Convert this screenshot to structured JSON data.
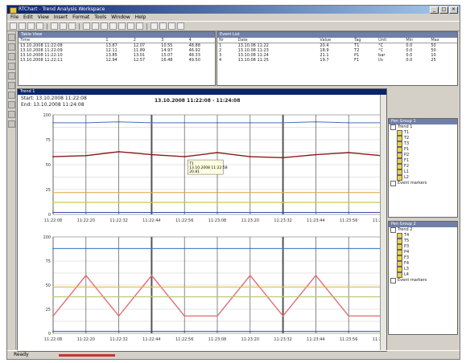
{
  "window": {
    "title": "RTChart - Trend Analysis Workspace"
  },
  "titlebar": {
    "min": "_",
    "max": "□",
    "close": "×"
  },
  "menu": [
    "File",
    "Edit",
    "View",
    "Insert",
    "Format",
    "Tools",
    "Window",
    "Help"
  ],
  "left_table": {
    "title": "Table View",
    "columns": [
      "Time",
      "1",
      "2",
      "3",
      "4"
    ],
    "rows": [
      [
        "13.10.2008 11:22:08",
        "13.87",
        "12.07",
        "10.55",
        "48.88"
      ],
      [
        "13.10.2008 11:22:09",
        "12.11",
        "11.89",
        "14.97",
        "46.92"
      ],
      [
        "13.10.2008 11:22:10",
        "13.85",
        "13.01",
        "15.07",
        "48.33"
      ],
      [
        "13.10.2008 11:22:11",
        "12.94",
        "12.57",
        "16.48",
        "49.50"
      ]
    ]
  },
  "right_table": {
    "title": "Event List",
    "columns": [
      "Nr",
      "Date",
      "Value",
      "Tag",
      "Unit",
      "Min",
      "Max"
    ],
    "rows": [
      [
        "1",
        "13.10.08 11:22",
        "20.4",
        "T1",
        "°C",
        "0.0",
        "50"
      ],
      [
        "2",
        "13.10.08 11:23",
        "18.9",
        "T2",
        "°C",
        "0.0",
        "50"
      ],
      [
        "3",
        "13.10.08 11:24",
        "21.1",
        "P1",
        "bar",
        "0.0",
        "10"
      ],
      [
        "4",
        "13.10.08 11:25",
        "19.7",
        "F1",
        "l/s",
        "0.0",
        "25"
      ]
    ]
  },
  "chart_window": {
    "title": "Trend 1",
    "info_line1": "Start: 13.10.2008 11:22:08",
    "info_line2": "End: 13.10.2008 11:24:08",
    "heading": "13.10.2008 11:22:08 - 11:24:08",
    "tooltip_lines": [
      "T1",
      "13.10.2008 11:22:58",
      "20.81"
    ]
  },
  "chart_data": [
    {
      "type": "line",
      "title": "",
      "x_ticks": [
        "11:22:08",
        "11:22:20",
        "11:22:32",
        "11:22:44",
        "11:22:56",
        "11:23:08",
        "11:23:20",
        "11:23:32",
        "11:23:44",
        "11:23:56",
        "11:24:08"
      ],
      "x": [
        0,
        10,
        20,
        30,
        40,
        50,
        60,
        70,
        80,
        90,
        100
      ],
      "ylim": [
        0,
        100
      ],
      "series": [
        {
          "color": "#4a6fb5",
          "values": [
            92,
            92,
            93,
            92,
            92,
            92,
            92,
            92,
            93,
            92,
            92
          ]
        },
        {
          "color": "#8b1a1a",
          "values": [
            58,
            59,
            63,
            60,
            58,
            62,
            58,
            57,
            60,
            62,
            59
          ]
        },
        {
          "color": "#e0a23a",
          "values": [
            22,
            22,
            22,
            22,
            22,
            22,
            22,
            22,
            22,
            22,
            22
          ]
        },
        {
          "color": "#c8c83a",
          "values": [
            12,
            12,
            12,
            12,
            12,
            12,
            12,
            12,
            12,
            12,
            12
          ]
        },
        {
          "color": "#3a4aa8",
          "values": [
            2,
            2,
            2,
            2,
            2,
            2,
            2,
            2,
            2,
            2,
            2
          ]
        }
      ]
    },
    {
      "type": "line",
      "title": "",
      "x_ticks": [
        "11:22:08",
        "11:22:20",
        "11:22:32",
        "11:22:44",
        "11:22:56",
        "11:23:08",
        "11:23:20",
        "11:23:32",
        "11:23:44",
        "11:23:56",
        "11:24:08"
      ],
      "x": [
        0,
        10,
        20,
        30,
        40,
        50,
        60,
        70,
        80,
        90,
        100
      ],
      "ylim": [
        0,
        100
      ],
      "series": [
        {
          "color": "#3a7bc8",
          "values": [
            88,
            88,
            88,
            88,
            88,
            88,
            88,
            88,
            88,
            88,
            88
          ]
        },
        {
          "color": "#e07070",
          "values": [
            18,
            60,
            18,
            60,
            18,
            18,
            60,
            18,
            60,
            18,
            18
          ]
        },
        {
          "color": "#e0b040",
          "values": [
            48,
            48,
            48,
            48,
            48,
            48,
            48,
            48,
            48,
            48,
            48
          ]
        },
        {
          "color": "#b8c870",
          "values": [
            38,
            38,
            38,
            38,
            38,
            38,
            38,
            38,
            38,
            38,
            38
          ]
        },
        {
          "color": "#3a4aa8",
          "values": [
            2,
            2,
            2,
            2,
            2,
            2,
            2,
            2,
            2,
            2,
            2
          ]
        }
      ]
    }
  ],
  "tree1": {
    "title": "Pen Group 1",
    "items": [
      {
        "label": "Trend 1",
        "color": "#ffffff"
      },
      {
        "label": "T1",
        "color": "#e8d24a"
      },
      {
        "label": "T2",
        "color": "#e8d24a"
      },
      {
        "label": "T3",
        "color": "#e8d24a"
      },
      {
        "label": "P1",
        "color": "#e8d24a"
      },
      {
        "label": "P2",
        "color": "#e8d24a"
      },
      {
        "label": "F1",
        "color": "#e8d24a"
      },
      {
        "label": "F2",
        "color": "#e8d24a"
      },
      {
        "label": "L1",
        "color": "#e8d24a"
      },
      {
        "label": "L2",
        "color": "#e8d24a"
      },
      {
        "label": "Event markers",
        "color": "#ffffff"
      }
    ]
  },
  "tree2": {
    "title": "Pen Group 2",
    "items": [
      {
        "label": "Trend 2",
        "color": "#ffffff"
      },
      {
        "label": "T4",
        "color": "#e8d24a"
      },
      {
        "label": "T5",
        "color": "#e8d24a"
      },
      {
        "label": "P3",
        "color": "#e8d24a"
      },
      {
        "label": "P4",
        "color": "#e8d24a"
      },
      {
        "label": "F3",
        "color": "#e8d24a"
      },
      {
        "label": "F4",
        "color": "#e8d24a"
      },
      {
        "label": "L3",
        "color": "#e8d24a"
      },
      {
        "label": "L4",
        "color": "#e8d24a"
      },
      {
        "label": "Event markers",
        "color": "#ffffff"
      }
    ]
  },
  "statusbar": {
    "text": "Ready"
  }
}
